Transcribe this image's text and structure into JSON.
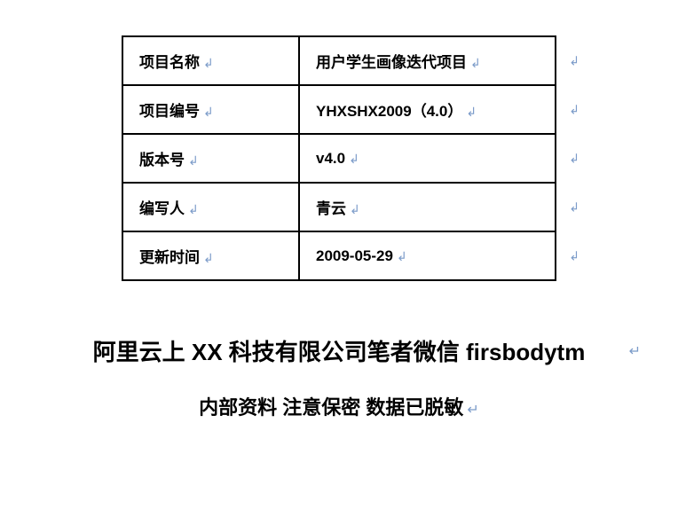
{
  "table": {
    "rows": [
      {
        "label": "项目名称",
        "value": "用户学生画像迭代项目"
      },
      {
        "label": "项目编号",
        "value": "YHXSHX2009（4.0）"
      },
      {
        "label": "版本号",
        "value": "v4.0"
      },
      {
        "label": "编写人",
        "value": "青云"
      },
      {
        "label": "更新时间",
        "value": "2009-05-29"
      }
    ]
  },
  "company_line": "阿里云上 XX 科技有限公司笔者微信 firsbodytm",
  "confidential_line": "内部资料  注意保密  数据已脱敏",
  "marks": {
    "paragraph": "↲",
    "enter": "↵"
  },
  "colors": {
    "text": "#000000",
    "border": "#000000",
    "mark": "#7b9bc9",
    "background": "#ffffff"
  },
  "typography": {
    "table_fontsize": 17,
    "company_fontsize": 26,
    "confidential_fontsize": 22,
    "font_weight": "bold"
  }
}
